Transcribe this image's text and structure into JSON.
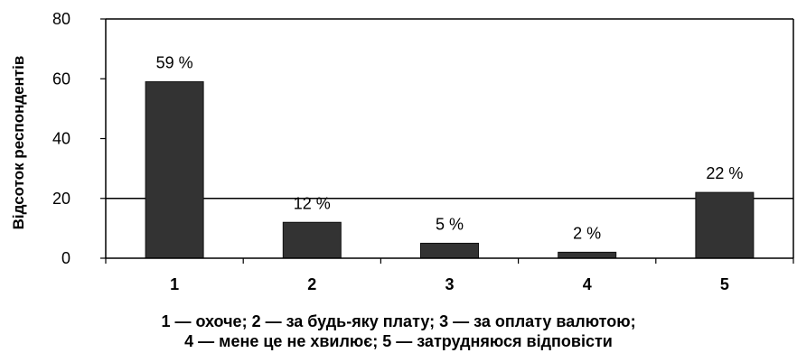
{
  "chart_data": {
    "type": "bar",
    "categories": [
      "1",
      "2",
      "3",
      "4",
      "5"
    ],
    "values": [
      59,
      12,
      5,
      2,
      22
    ],
    "data_labels": [
      "59 %",
      "12 %",
      "5 %",
      "2 %",
      "22 %"
    ],
    "ylabel": "Відсоток респондентів",
    "xlabel": "",
    "ylim": [
      0,
      80
    ],
    "yticks": [
      0,
      20,
      40,
      60,
      80
    ],
    "reference_line": 20,
    "caption_lines": [
      "1 — охоче;  2 — за будь-яку плату;  3 — за оплату валютою;",
      "4 — мене це не хвилює;  5 — затрудняюся відповісти"
    ],
    "colors": {
      "bar": "#333333",
      "axis": "#000000"
    },
    "grid": false,
    "legend": "none"
  }
}
